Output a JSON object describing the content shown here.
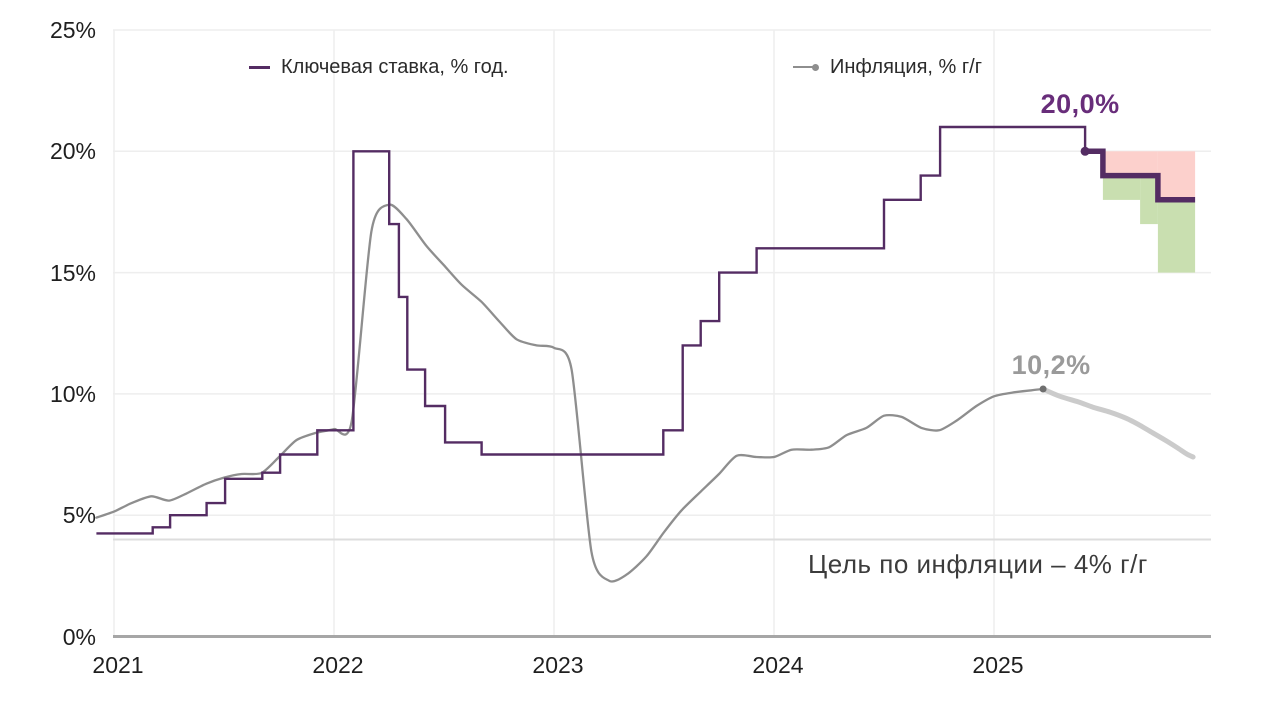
{
  "legend": {
    "items": [
      {
        "label": "Ключевая ставка, % год.",
        "color": "#542c63",
        "marker": "line"
      },
      {
        "label": "Инфляция, % г/г",
        "color": "#8e8e8e",
        "marker": "line-dot"
      }
    ]
  },
  "chart_data": {
    "type": "line",
    "title": "",
    "x_axis": {
      "ticks": [
        2021,
        2022,
        2023,
        2024,
        2025
      ],
      "tick_labels": [
        "2021",
        "2022",
        "2023",
        "2024",
        "2025"
      ],
      "range": [
        2020.92,
        2026.0
      ]
    },
    "y_axis": {
      "ticks": [
        0,
        5,
        10,
        15,
        20,
        25
      ],
      "tick_labels": [
        "0%",
        "5%",
        "10%",
        "15%",
        "20%",
        "25%"
      ],
      "range": [
        0,
        25
      ]
    },
    "grid": true,
    "target_line": {
      "value": 4,
      "label": "Цель по инфляции – 4% г/г",
      "color": "#dddddd"
    },
    "series": [
      {
        "name": "Ключевая ставка, % год.",
        "kind": "step",
        "role": "actual",
        "color": "#542c63",
        "width": 2.4,
        "points": [
          [
            2020.92,
            4.25
          ],
          [
            2021.176,
            4.5
          ],
          [
            2021.255,
            5.0
          ],
          [
            2021.421,
            5.5
          ],
          [
            2021.505,
            6.5
          ],
          [
            2021.674,
            6.75
          ],
          [
            2021.755,
            7.5
          ],
          [
            2021.924,
            8.5
          ],
          [
            2022.088,
            20
          ],
          [
            2022.251,
            17
          ],
          [
            2022.295,
            14
          ],
          [
            2022.333,
            11
          ],
          [
            2022.414,
            9.5
          ],
          [
            2022.505,
            8.0
          ],
          [
            2022.671,
            7.5
          ],
          [
            2023.497,
            8.5
          ],
          [
            2023.585,
            12
          ],
          [
            2023.667,
            13
          ],
          [
            2023.751,
            15
          ],
          [
            2023.921,
            16
          ],
          [
            2024.5,
            18
          ],
          [
            2024.667,
            19
          ],
          [
            2024.755,
            21
          ],
          [
            2025.414,
            20
          ]
        ]
      },
      {
        "name": "Ключевая ставка, прогнозная траектория",
        "kind": "step",
        "role": "forecast",
        "color": "#542c63",
        "width": 5.5,
        "points": [
          [
            2025.414,
            20
          ],
          [
            2025.495,
            19
          ],
          [
            2025.745,
            18
          ],
          [
            2025.914,
            18
          ]
        ]
      },
      {
        "name": "Инфляция, % г/г",
        "kind": "smooth",
        "role": "actual",
        "color": "#8e8e8e",
        "width": 2.3,
        "points": [
          [
            2020.92,
            4.9
          ],
          [
            2021.0,
            5.15
          ],
          [
            2021.08,
            5.5
          ],
          [
            2021.17,
            5.78
          ],
          [
            2021.25,
            5.6
          ],
          [
            2021.33,
            5.9
          ],
          [
            2021.42,
            6.3
          ],
          [
            2021.5,
            6.55
          ],
          [
            2021.58,
            6.7
          ],
          [
            2021.67,
            6.74
          ],
          [
            2021.75,
            7.4
          ],
          [
            2021.83,
            8.1
          ],
          [
            2021.92,
            8.4
          ],
          [
            2022.0,
            8.55
          ],
          [
            2022.08,
            8.85
          ],
          [
            2022.17,
            16.7
          ],
          [
            2022.25,
            17.8
          ],
          [
            2022.33,
            17.2
          ],
          [
            2022.42,
            16.1
          ],
          [
            2022.5,
            15.3
          ],
          [
            2022.58,
            14.5
          ],
          [
            2022.67,
            13.8
          ],
          [
            2022.75,
            13.0
          ],
          [
            2022.83,
            12.25
          ],
          [
            2022.92,
            12.0
          ],
          [
            2023.0,
            11.9
          ],
          [
            2023.08,
            11.0
          ],
          [
            2023.17,
            3.5
          ],
          [
            2023.25,
            2.3
          ],
          [
            2023.33,
            2.55
          ],
          [
            2023.42,
            3.3
          ],
          [
            2023.5,
            4.3
          ],
          [
            2023.58,
            5.2
          ],
          [
            2023.67,
            6.0
          ],
          [
            2023.75,
            6.7
          ],
          [
            2023.83,
            7.45
          ],
          [
            2023.92,
            7.4
          ],
          [
            2024.0,
            7.4
          ],
          [
            2024.08,
            7.7
          ],
          [
            2024.17,
            7.7
          ],
          [
            2024.25,
            7.8
          ],
          [
            2024.33,
            8.3
          ],
          [
            2024.42,
            8.6
          ],
          [
            2024.5,
            9.1
          ],
          [
            2024.58,
            9.05
          ],
          [
            2024.67,
            8.6
          ],
          [
            2024.75,
            8.5
          ],
          [
            2024.83,
            8.9
          ],
          [
            2024.92,
            9.5
          ],
          [
            2025.0,
            9.9
          ],
          [
            2025.08,
            10.05
          ],
          [
            2025.17,
            10.15
          ],
          [
            2025.223,
            10.2
          ]
        ]
      },
      {
        "name": "Инфляция, прогноз",
        "kind": "smooth",
        "role": "forecast",
        "color": "#cbcbcb",
        "width": 5,
        "points": [
          [
            2025.223,
            10.2
          ],
          [
            2025.3,
            9.9
          ],
          [
            2025.39,
            9.65
          ],
          [
            2025.45,
            9.45
          ],
          [
            2025.527,
            9.25
          ],
          [
            2025.6,
            9.0
          ],
          [
            2025.664,
            8.7
          ],
          [
            2025.72,
            8.4
          ],
          [
            2025.777,
            8.1
          ],
          [
            2025.83,
            7.8
          ],
          [
            2025.877,
            7.52
          ],
          [
            2025.905,
            7.4
          ]
        ]
      }
    ],
    "bands": [
      {
        "name": "прогнозный диапазон выше траектории",
        "color": "#fcd0cc",
        "segments": [
          [
            2025.495,
            2025.745,
            19,
            20
          ],
          [
            2025.745,
            2025.914,
            18,
            20
          ]
        ]
      },
      {
        "name": "прогнозный диапазон ниже траектории",
        "color": "#c9dfb0",
        "segments": [
          [
            2025.495,
            2025.664,
            18,
            19
          ],
          [
            2025.664,
            2025.745,
            17,
            19
          ],
          [
            2025.745,
            2025.914,
            15,
            18
          ]
        ]
      }
    ],
    "markers": [
      {
        "x": 2025.414,
        "y": 20,
        "color": "#542c63",
        "r": 4.5
      },
      {
        "x": 2025.223,
        "y": 10.2,
        "color": "#6f6f6f",
        "r": 3.5
      }
    ],
    "annotations": [
      {
        "text": "20,0%",
        "x": 2025.414,
        "y": 20,
        "color": "#682d7a",
        "series": "key-rate"
      },
      {
        "text": "10,2%",
        "x": 2025.223,
        "y": 10.2,
        "color": "#9a9a9a",
        "series": "inflation"
      }
    ],
    "grid_color": "#eeeeee",
    "axis_color": "#a6a6a6"
  }
}
